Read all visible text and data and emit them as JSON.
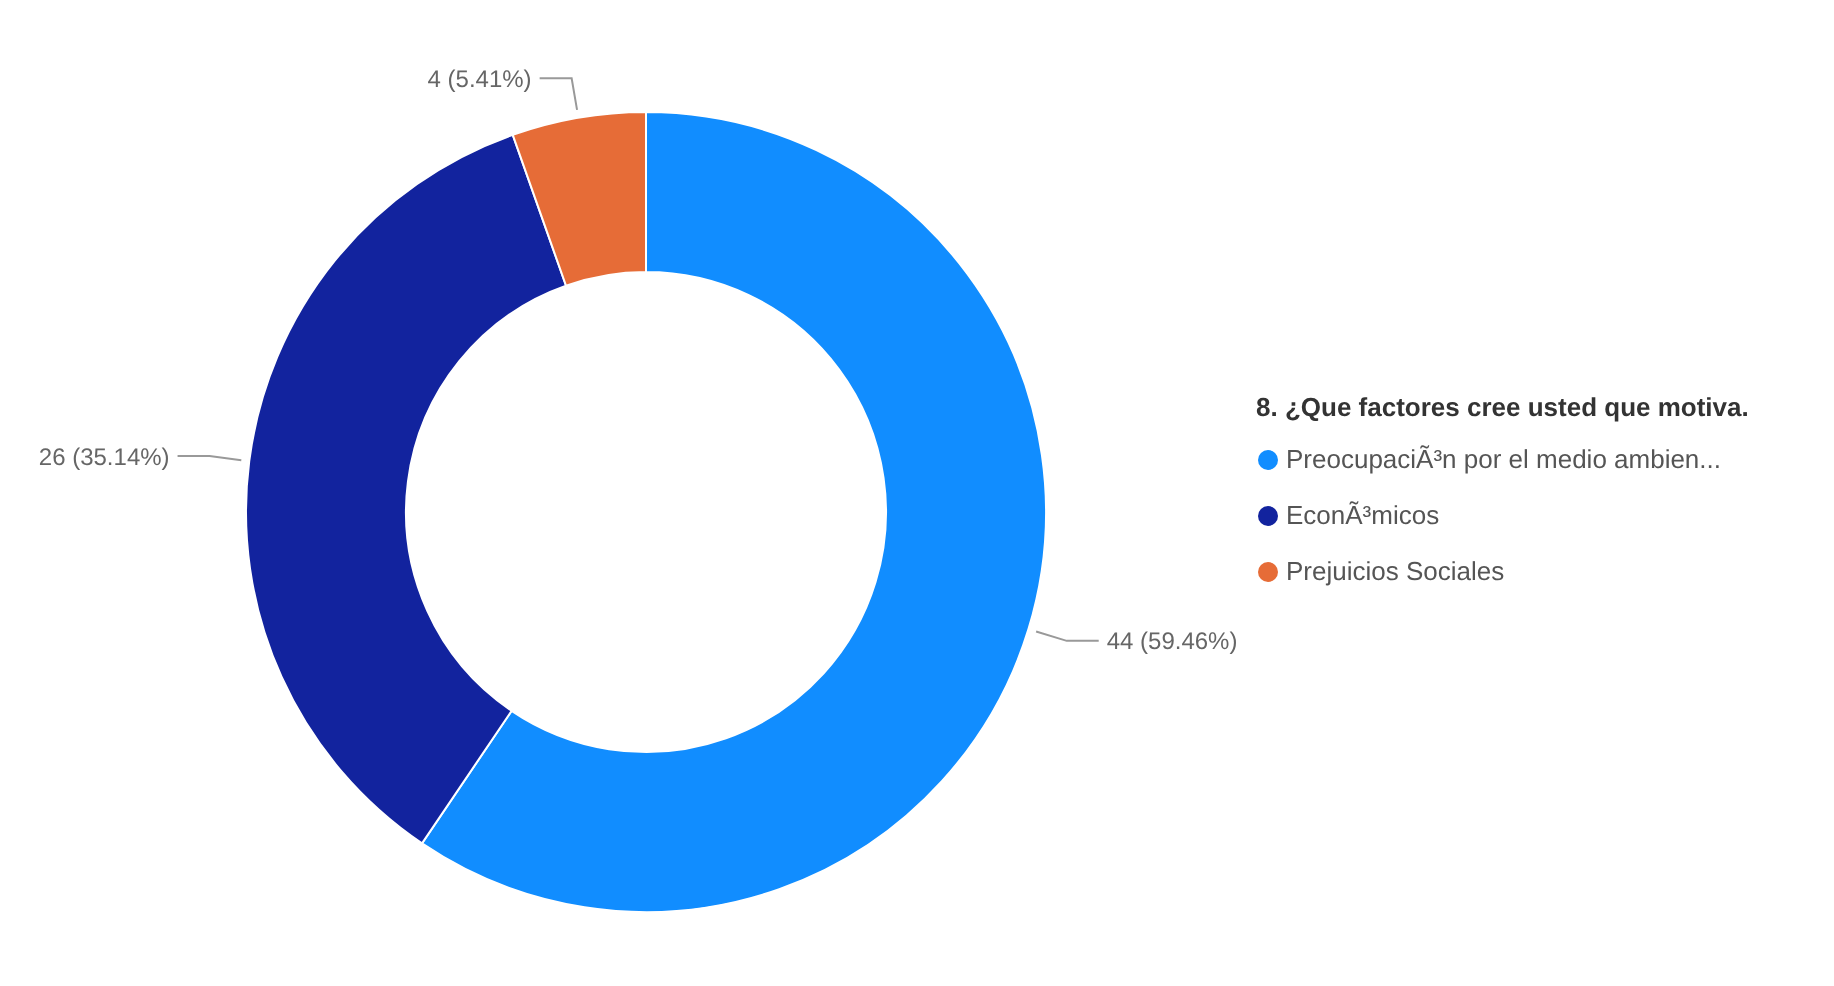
{
  "chart_data": {
    "type": "donut",
    "legend_title": "8. ¿Que factores cree usted que motiva.",
    "categories": [
      "PreocupaciÃ³n por el medio ambien...",
      "EconÃ³micos",
      "Prejuicios Sociales"
    ],
    "values": [
      44,
      26,
      4
    ],
    "colors": [
      "#118dff",
      "#12239e",
      "#e66c37"
    ],
    "value_labels": [
      "44 (59.46%)",
      "26 (35.14%)",
      "4 (5.41%)"
    ],
    "legend": "right"
  }
}
